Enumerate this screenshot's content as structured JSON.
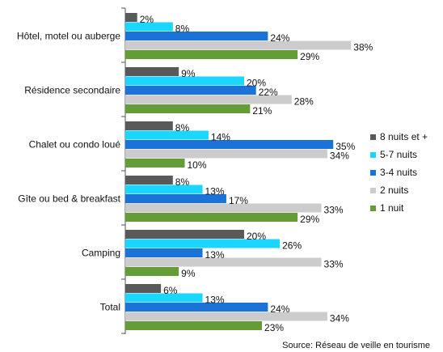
{
  "chart_data": {
    "type": "bar",
    "orientation": "horizontal",
    "title": "",
    "xlabel": "",
    "ylabel": "",
    "xlim": [
      0,
      45
    ],
    "grid": false,
    "legend_position": "right",
    "categories": [
      "Hôtel, motel ou auberge",
      "Résidence secondaire",
      "Chalet ou condo loué",
      "Gîte ou bed & breakfast",
      "Camping",
      "Total"
    ],
    "series": [
      {
        "name": "8 nuits et +",
        "color": "#595959",
        "values": [
          2,
          9,
          8,
          8,
          20,
          6
        ]
      },
      {
        "name": "5-7 nuits",
        "color": "#1bd6ff",
        "values": [
          8,
          20,
          14,
          13,
          26,
          13
        ]
      },
      {
        "name": "3-4 nuits",
        "color": "#1b73d8",
        "values": [
          24,
          22,
          35,
          17,
          13,
          24
        ]
      },
      {
        "name": "2 nuits",
        "color": "#cccccc",
        "values": [
          38,
          28,
          34,
          33,
          33,
          34
        ]
      },
      {
        "name": "1 nuit",
        "color": "#649c38",
        "values": [
          29,
          21,
          10,
          29,
          9,
          23
        ]
      }
    ],
    "value_suffix": "%",
    "source": "Source: Réseau de veille en tourisme"
  }
}
